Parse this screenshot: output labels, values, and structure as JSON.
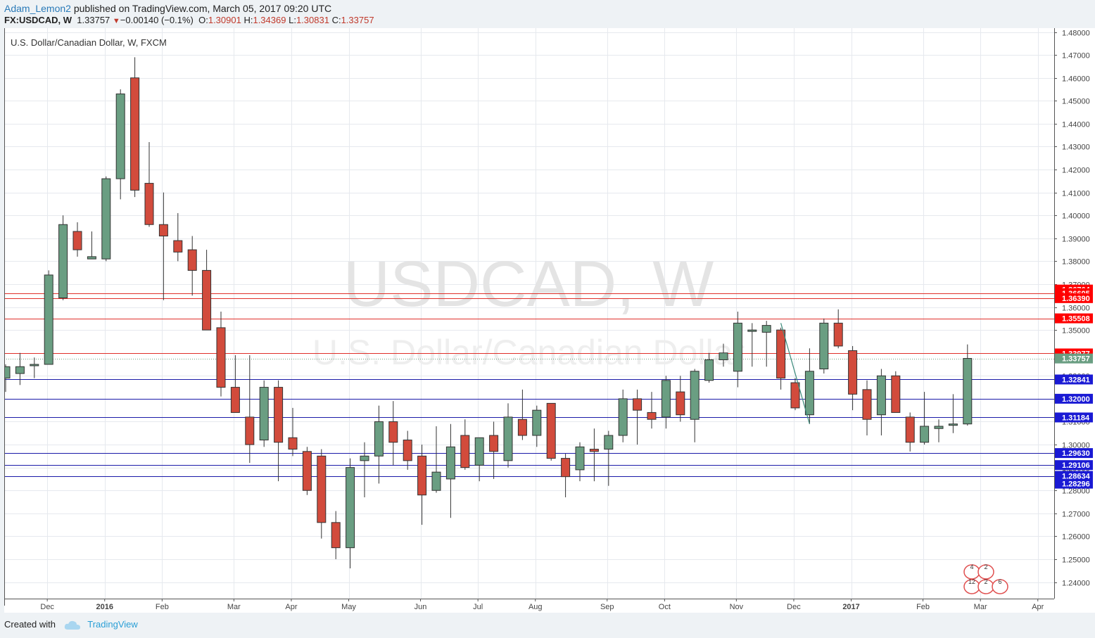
{
  "header": {
    "author": "Adam_Lemon2",
    "published_text": "published on TradingView.com, March 05, 2017 09:20 UTC",
    "symbol": "FX:USDCAD, W",
    "last": "1.33757",
    "change": "−0.00140 (−0.1%)",
    "o_label": "O:",
    "o": "1.30901",
    "h_label": "H:",
    "h": "1.34369",
    "l_label": "L:",
    "l": "1.30831",
    "c_label": "C:",
    "c": "1.33757"
  },
  "footer": {
    "created_with": "Created with",
    "brand": "TradingView"
  },
  "colors": {
    "up": "#6a9e82",
    "down": "#d24b3c",
    "red_line": "#e0302a",
    "blue_line": "#1a1aa8",
    "grid": "#e6e9ee"
  },
  "chart_data": {
    "type": "candlestick",
    "title": "U.S. Dollar/Canadian Dollar, W, FXCM",
    "watermark_main": "USDCAD, W",
    "watermark_sub": "U.S. Dollar/Canadian Dollar",
    "ylim": [
      1.2328,
      1.4817
    ],
    "y_ticks": [
      "1.48000",
      "1.47000",
      "1.46000",
      "1.45000",
      "1.44000",
      "1.43000",
      "1.42000",
      "1.41000",
      "1.40000",
      "1.39000",
      "1.38000",
      "1.37000",
      "1.36000",
      "1.35000",
      "1.34000",
      "1.33000",
      "1.32000",
      "1.31000",
      "1.30000",
      "1.29000",
      "1.28000",
      "1.27000",
      "1.26000",
      "1.25000",
      "1.24000"
    ],
    "x_labels": [
      "Dec",
      "2016",
      "Feb",
      "Mar",
      "Apr",
      "May",
      "Jun",
      "Jul",
      "Aug",
      "Sep",
      "Oct",
      "Nov",
      "Dec",
      "2017",
      "Feb",
      "Mar",
      "Apr"
    ],
    "x_label_week_index": [
      2.9,
      6.9,
      10.9,
      15.9,
      19.9,
      23.9,
      28.9,
      32.9,
      36.9,
      41.9,
      45.9,
      50.9,
      54.9,
      58.9,
      63.9,
      67.9,
      71.9
    ],
    "x_bold": [
      "2016",
      "2017"
    ],
    "candles": [
      [
        1.329,
        1.335,
        1.323,
        1.334
      ],
      [
        1.331,
        1.34,
        1.326,
        1.334
      ],
      [
        1.335,
        1.338,
        1.329,
        1.335
      ],
      [
        1.335,
        1.376,
        1.335,
        1.374
      ],
      [
        1.364,
        1.4,
        1.363,
        1.396
      ],
      [
        1.393,
        1.397,
        1.382,
        1.385
      ],
      [
        1.381,
        1.393,
        1.381,
        1.382
      ],
      [
        1.381,
        1.417,
        1.38,
        1.416
      ],
      [
        1.416,
        1.455,
        1.407,
        1.453
      ],
      [
        1.46,
        1.469,
        1.408,
        1.411
      ],
      [
        1.414,
        1.432,
        1.395,
        1.396
      ],
      [
        1.396,
        1.41,
        1.363,
        1.391
      ],
      [
        1.389,
        1.401,
        1.38,
        1.384
      ],
      [
        1.385,
        1.391,
        1.365,
        1.376
      ],
      [
        1.376,
        1.385,
        1.35,
        1.35
      ],
      [
        1.351,
        1.358,
        1.321,
        1.325
      ],
      [
        1.325,
        1.339,
        1.315,
        1.314
      ],
      [
        1.312,
        1.339,
        1.292,
        1.3
      ],
      [
        1.302,
        1.328,
        1.299,
        1.325
      ],
      [
        1.325,
        1.328,
        1.284,
        1.301
      ],
      [
        1.303,
        1.316,
        1.295,
        1.298
      ],
      [
        1.297,
        1.299,
        1.278,
        1.28
      ],
      [
        1.295,
        1.298,
        1.259,
        1.266
      ],
      [
        1.266,
        1.271,
        1.25,
        1.255
      ],
      [
        1.255,
        1.294,
        1.246,
        1.29
      ],
      [
        1.293,
        1.301,
        1.277,
        1.295
      ],
      [
        1.295,
        1.317,
        1.283,
        1.31
      ],
      [
        1.31,
        1.319,
        1.291,
        1.301
      ],
      [
        1.302,
        1.306,
        1.289,
        1.293
      ],
      [
        1.295,
        1.3,
        1.265,
        1.278
      ],
      [
        1.28,
        1.308,
        1.279,
        1.288
      ],
      [
        1.285,
        1.309,
        1.268,
        1.299
      ],
      [
        1.304,
        1.311,
        1.289,
        1.29
      ],
      [
        1.291,
        1.303,
        1.284,
        1.303
      ],
      [
        1.304,
        1.31,
        1.285,
        1.297
      ],
      [
        1.293,
        1.318,
        1.29,
        1.312
      ],
      [
        1.311,
        1.324,
        1.302,
        1.304
      ],
      [
        1.304,
        1.317,
        1.299,
        1.315
      ],
      [
        1.318,
        1.318,
        1.293,
        1.294
      ],
      [
        1.294,
        1.296,
        1.277,
        1.286
      ],
      [
        1.289,
        1.301,
        1.284,
        1.299
      ],
      [
        1.298,
        1.307,
        1.284,
        1.297
      ],
      [
        1.298,
        1.306,
        1.282,
        1.304
      ],
      [
        1.304,
        1.324,
        1.301,
        1.32
      ],
      [
        1.32,
        1.324,
        1.3,
        1.315
      ],
      [
        1.314,
        1.323,
        1.307,
        1.311
      ],
      [
        1.312,
        1.33,
        1.307,
        1.328
      ],
      [
        1.323,
        1.33,
        1.31,
        1.313
      ],
      [
        1.311,
        1.333,
        1.301,
        1.332
      ],
      [
        1.328,
        1.34,
        1.327,
        1.337
      ],
      [
        1.337,
        1.344,
        1.334,
        1.34
      ],
      [
        1.332,
        1.358,
        1.325,
        1.353
      ],
      [
        1.35,
        1.353,
        1.334,
        1.35
      ],
      [
        1.349,
        1.354,
        1.334,
        1.352
      ],
      [
        1.35,
        1.351,
        1.324,
        1.329
      ],
      [
        1.327,
        1.329,
        1.315,
        1.316
      ],
      [
        1.313,
        1.342,
        1.309,
        1.332
      ],
      [
        1.333,
        1.355,
        1.331,
        1.353
      ],
      [
        1.353,
        1.359,
        1.342,
        1.343
      ],
      [
        1.341,
        1.343,
        1.315,
        1.322
      ],
      [
        1.324,
        1.328,
        1.304,
        1.311
      ],
      [
        1.313,
        1.333,
        1.304,
        1.33
      ],
      [
        1.33,
        1.332,
        1.315,
        1.314
      ],
      [
        1.312,
        1.314,
        1.297,
        1.301
      ],
      [
        1.301,
        1.323,
        1.3,
        1.308
      ],
      [
        1.307,
        1.311,
        1.301,
        1.308
      ],
      [
        1.309,
        1.322,
        1.305,
        1.309
      ],
      [
        1.309,
        1.3437,
        1.3083,
        1.3376
      ]
    ],
    "horizontal_levels": [
      {
        "value": 1.36764,
        "label": "1.36764",
        "color": "red",
        "line": false
      },
      {
        "value": 1.36605,
        "label": "1.36605",
        "color": "red",
        "line": true
      },
      {
        "value": 1.3639,
        "label": "1.36390",
        "color": "red",
        "line": true
      },
      {
        "value": 1.35508,
        "label": "1.35508",
        "color": "red",
        "line": true
      },
      {
        "value": 1.33977,
        "label": "1.33977",
        "color": "red",
        "line": true
      },
      {
        "value": 1.33757,
        "label": "1.33757",
        "color": "last",
        "line": "dotted"
      },
      {
        "value": 1.32841,
        "label": "1.32841",
        "color": "blue",
        "line": true
      },
      {
        "value": 1.32,
        "label": "1.32000",
        "color": "blue",
        "line": true
      },
      {
        "value": 1.31184,
        "label": "1.31184",
        "color": "blue",
        "line": true
      },
      {
        "value": 1.2963,
        "label": "1.29630",
        "color": "blue",
        "line": true
      },
      {
        "value": 1.29106,
        "label": "1.29106",
        "color": "blue",
        "line": true
      },
      {
        "value": 1.28634,
        "label": "1.28634",
        "color": "blue",
        "line": true
      },
      {
        "value": 1.28296,
        "label": "1.28296",
        "color": "blue",
        "line": false
      }
    ],
    "trendline": [
      [
        54.0,
        1.353
      ],
      [
        56.0,
        1.309
      ]
    ],
    "event_markers": [
      "4",
      "2",
      "12",
      "2",
      "6"
    ],
    "grid": true
  }
}
